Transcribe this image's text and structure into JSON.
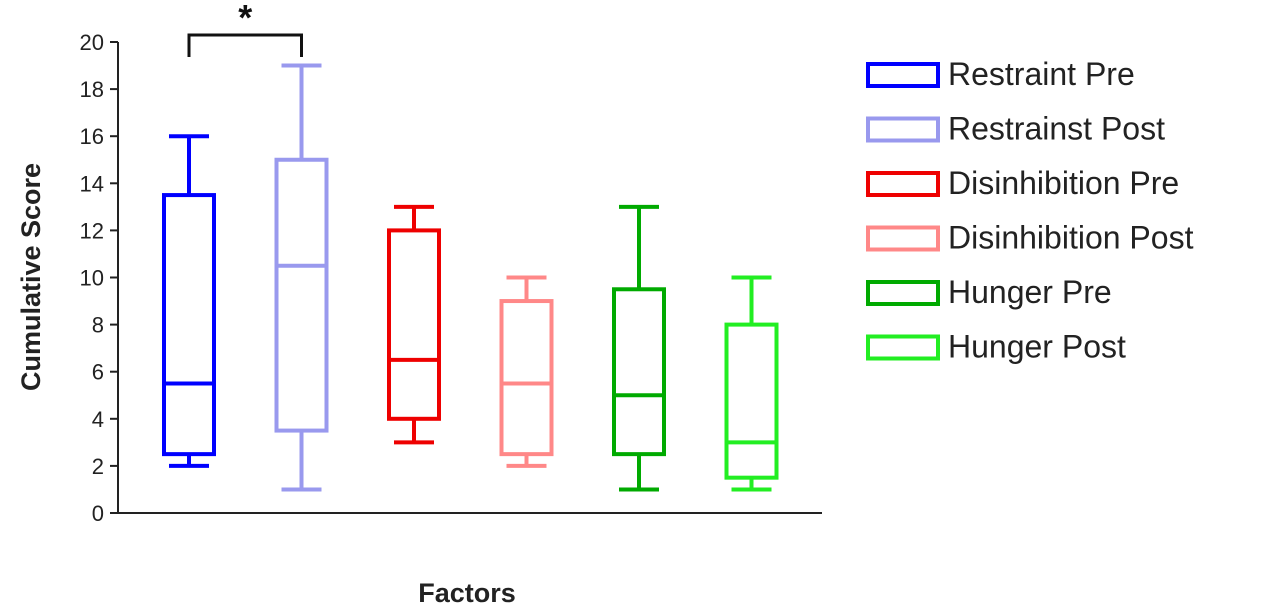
{
  "chart_data": {
    "type": "boxplot",
    "xlabel": "Factors",
    "ylabel": "Cumulative Score",
    "ylim": [
      0,
      20
    ],
    "yticks": [
      0,
      2,
      4,
      6,
      8,
      10,
      12,
      14,
      16,
      18,
      20
    ],
    "grid": false,
    "legend_position": "right",
    "series": [
      {
        "name": "Restraint Pre",
        "color": "#0000ff",
        "min": 2,
        "q1": 2.5,
        "median": 5.5,
        "q3": 13.5,
        "max": 16
      },
      {
        "name": "Restrainst Post",
        "color": "#9999ee",
        "min": 1,
        "q1": 3.5,
        "median": 10.5,
        "q3": 15,
        "max": 19
      },
      {
        "name": "Disinhibition Pre",
        "color": "#ee0000",
        "min": 3,
        "q1": 4,
        "median": 6.5,
        "q3": 12,
        "max": 13
      },
      {
        "name": "Disinhibition Post",
        "color": "#ff8888",
        "min": 2,
        "q1": 2.5,
        "median": 5.5,
        "q3": 9,
        "max": 10
      },
      {
        "name": "Hunger Pre",
        "color": "#00aa00",
        "min": 1,
        "q1": 2.5,
        "median": 5,
        "q3": 9.5,
        "max": 13
      },
      {
        "name": "Hunger Post",
        "color": "#22ee22",
        "min": 1,
        "q1": 1.5,
        "median": 3,
        "q3": 8,
        "max": 10
      }
    ],
    "annotations": [
      {
        "type": "significance",
        "text": "*",
        "from_series": 0,
        "to_series": 1
      }
    ]
  }
}
